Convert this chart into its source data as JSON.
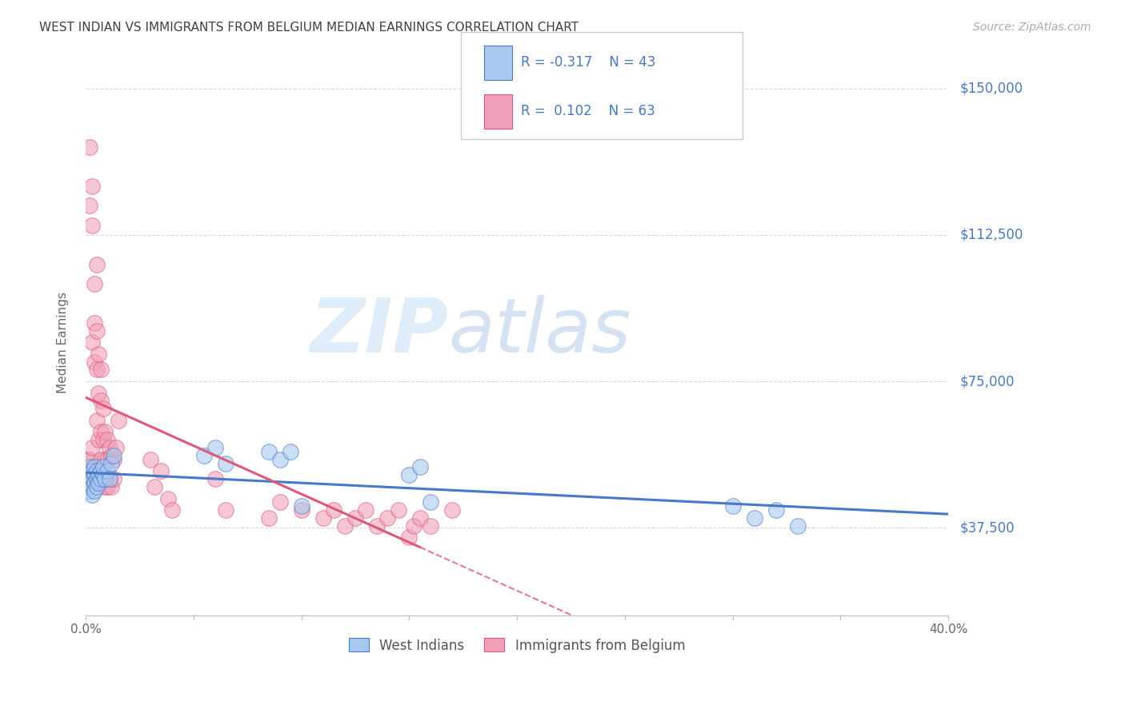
{
  "title": "WEST INDIAN VS IMMIGRANTS FROM BELGIUM MEDIAN EARNINGS CORRELATION CHART",
  "source_text": "Source: ZipAtlas.com",
  "ylabel": "Median Earnings",
  "xlim": [
    0.0,
    0.4
  ],
  "ylim": [
    15000,
    155000
  ],
  "yticks": [
    37500,
    75000,
    112500,
    150000
  ],
  "ytick_labels": [
    "$37,500",
    "$75,000",
    "$112,500",
    "$150,000"
  ],
  "xticks": [
    0.0,
    0.05,
    0.1,
    0.15,
    0.2,
    0.25,
    0.3,
    0.35,
    0.4
  ],
  "xtick_labels": [
    "0.0%",
    "",
    "",
    "",
    "",
    "",
    "",
    "",
    "40.0%"
  ],
  "watermark_zip": "ZIP",
  "watermark_atlas": "atlas",
  "background_color": "#ffffff",
  "grid_color": "#d8d8d8",
  "blue_color": "#a8c8f0",
  "pink_color": "#f0a0b8",
  "blue_line_color": "#4878c8",
  "pink_line_color": "#e05878",
  "pink_dash_color": "#e87890",
  "title_color": "#404040",
  "label_color": "#4878c8",
  "r_blue": -0.317,
  "n_blue": 43,
  "r_pink": 0.102,
  "n_pink": 63,
  "legend_label_blue": "West Indians",
  "legend_label_pink": "Immigrants from Belgium",
  "blue_scatter_x": [
    0.001,
    0.001,
    0.001,
    0.002,
    0.002,
    0.002,
    0.002,
    0.003,
    0.003,
    0.003,
    0.003,
    0.004,
    0.004,
    0.004,
    0.004,
    0.005,
    0.005,
    0.005,
    0.006,
    0.006,
    0.007,
    0.007,
    0.008,
    0.008,
    0.009,
    0.01,
    0.011,
    0.012,
    0.013,
    0.055,
    0.06,
    0.065,
    0.085,
    0.09,
    0.095,
    0.1,
    0.15,
    0.155,
    0.16,
    0.3,
    0.31,
    0.32,
    0.33
  ],
  "blue_scatter_y": [
    50000,
    48000,
    52000,
    49000,
    51000,
    47000,
    53000,
    50000,
    52000,
    48000,
    46000,
    51000,
    49000,
    53000,
    47000,
    50000,
    52000,
    48000,
    51000,
    49000,
    50000,
    52000,
    51000,
    53000,
    50000,
    52000,
    50000,
    54000,
    56000,
    56000,
    58000,
    54000,
    57000,
    55000,
    57000,
    43000,
    51000,
    53000,
    44000,
    43000,
    40000,
    42000,
    38000
  ],
  "pink_scatter_x": [
    0.001,
    0.001,
    0.002,
    0.002,
    0.002,
    0.003,
    0.003,
    0.003,
    0.003,
    0.004,
    0.004,
    0.004,
    0.005,
    0.005,
    0.005,
    0.005,
    0.006,
    0.006,
    0.006,
    0.007,
    0.007,
    0.007,
    0.007,
    0.008,
    0.008,
    0.008,
    0.009,
    0.009,
    0.009,
    0.01,
    0.01,
    0.01,
    0.011,
    0.011,
    0.012,
    0.012,
    0.013,
    0.013,
    0.014,
    0.015,
    0.03,
    0.032,
    0.035,
    0.038,
    0.04,
    0.06,
    0.065,
    0.085,
    0.09,
    0.1,
    0.11,
    0.115,
    0.12,
    0.125,
    0.13,
    0.135,
    0.14,
    0.145,
    0.15,
    0.152,
    0.155,
    0.16,
    0.17
  ],
  "pink_scatter_y": [
    55000,
    52000,
    135000,
    120000,
    55000,
    125000,
    115000,
    85000,
    58000,
    100000,
    90000,
    80000,
    105000,
    88000,
    78000,
    65000,
    82000,
    72000,
    60000,
    78000,
    70000,
    62000,
    55000,
    68000,
    60000,
    50000,
    62000,
    55000,
    48000,
    60000,
    55000,
    48000,
    58000,
    50000,
    56000,
    48000,
    55000,
    50000,
    58000,
    65000,
    55000,
    48000,
    52000,
    45000,
    42000,
    50000,
    42000,
    40000,
    44000,
    42000,
    40000,
    42000,
    38000,
    40000,
    42000,
    38000,
    40000,
    42000,
    35000,
    38000,
    40000,
    38000,
    42000
  ]
}
